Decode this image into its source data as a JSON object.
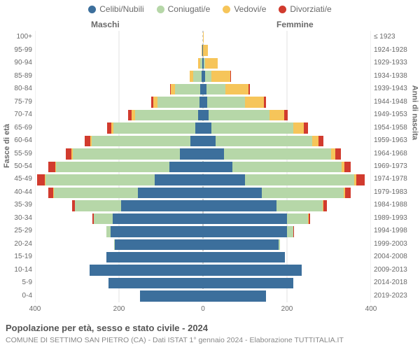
{
  "type": "population-pyramid",
  "background_color": "#ffffff",
  "grid_color": "#e0e0e0",
  "zero_line_color": "#999999",
  "label_color": "#6a6a6a",
  "legend": [
    {
      "label": "Celibi/Nubili",
      "color": "#3c6f9c"
    },
    {
      "label": "Coniugati/e",
      "color": "#b6d7a8"
    },
    {
      "label": "Vedovi/e",
      "color": "#f6c55a"
    },
    {
      "label": "Divorziati/e",
      "color": "#d13b2e"
    }
  ],
  "column_headers": {
    "male": "Maschi",
    "female": "Femmine"
  },
  "left_axis_title": "Fasce di età",
  "right_axis_title": "Anni di nascita",
  "x_axis": {
    "max": 400,
    "ticks": [
      400,
      200,
      0,
      200,
      400
    ]
  },
  "age_bands": [
    "100+",
    "95-99",
    "90-94",
    "85-89",
    "80-84",
    "75-79",
    "70-74",
    "65-69",
    "60-64",
    "55-59",
    "50-54",
    "45-49",
    "40-44",
    "35-39",
    "30-34",
    "25-29",
    "20-24",
    "15-19",
    "10-14",
    "5-9",
    "0-4"
  ],
  "birth_years": [
    "≤ 1923",
    "1924-1928",
    "1929-1933",
    "1934-1938",
    "1939-1943",
    "1944-1948",
    "1949-1953",
    "1954-1958",
    "1959-1963",
    "1964-1968",
    "1969-1973",
    "1974-1978",
    "1979-1983",
    "1984-1988",
    "1989-1993",
    "1994-1998",
    "1999-2003",
    "2004-2008",
    "2009-2013",
    "2014-2018",
    "2019-2023"
  ],
  "bands": [
    {
      "m": {
        "c": 0,
        "g": 0,
        "v": 0,
        "d": 0
      },
      "f": {
        "c": 0,
        "g": 0,
        "v": 2,
        "d": 0
      }
    },
    {
      "m": {
        "c": 1,
        "g": 0,
        "v": 2,
        "d": 0
      },
      "f": {
        "c": 0,
        "g": 0,
        "v": 12,
        "d": 0
      }
    },
    {
      "m": {
        "c": 2,
        "g": 5,
        "v": 5,
        "d": 0
      },
      "f": {
        "c": 2,
        "g": 3,
        "v": 30,
        "d": 0
      }
    },
    {
      "m": {
        "c": 4,
        "g": 20,
        "v": 8,
        "d": 0
      },
      "f": {
        "c": 5,
        "g": 15,
        "v": 45,
        "d": 2
      }
    },
    {
      "m": {
        "c": 6,
        "g": 60,
        "v": 10,
        "d": 2
      },
      "f": {
        "c": 8,
        "g": 45,
        "v": 55,
        "d": 3
      }
    },
    {
      "m": {
        "c": 8,
        "g": 100,
        "v": 10,
        "d": 5
      },
      "f": {
        "c": 10,
        "g": 90,
        "v": 45,
        "d": 5
      }
    },
    {
      "m": {
        "c": 12,
        "g": 150,
        "v": 8,
        "d": 8
      },
      "f": {
        "c": 14,
        "g": 145,
        "v": 35,
        "d": 8
      }
    },
    {
      "m": {
        "c": 18,
        "g": 195,
        "v": 5,
        "d": 10
      },
      "f": {
        "c": 20,
        "g": 195,
        "v": 25,
        "d": 10
      }
    },
    {
      "m": {
        "c": 30,
        "g": 235,
        "v": 4,
        "d": 12
      },
      "f": {
        "c": 30,
        "g": 230,
        "v": 15,
        "d": 12
      }
    },
    {
      "m": {
        "c": 55,
        "g": 255,
        "v": 3,
        "d": 14
      },
      "f": {
        "c": 50,
        "g": 255,
        "v": 10,
        "d": 14
      }
    },
    {
      "m": {
        "c": 80,
        "g": 270,
        "v": 2,
        "d": 16
      },
      "f": {
        "c": 70,
        "g": 260,
        "v": 6,
        "d": 16
      }
    },
    {
      "m": {
        "c": 115,
        "g": 260,
        "v": 2,
        "d": 18
      },
      "f": {
        "c": 100,
        "g": 260,
        "v": 5,
        "d": 20
      }
    },
    {
      "m": {
        "c": 155,
        "g": 200,
        "v": 1,
        "d": 12
      },
      "f": {
        "c": 140,
        "g": 195,
        "v": 3,
        "d": 14
      }
    },
    {
      "m": {
        "c": 195,
        "g": 110,
        "v": 0,
        "d": 6
      },
      "f": {
        "c": 175,
        "g": 110,
        "v": 2,
        "d": 8
      }
    },
    {
      "m": {
        "c": 215,
        "g": 45,
        "v": 0,
        "d": 3
      },
      "f": {
        "c": 200,
        "g": 50,
        "v": 1,
        "d": 4
      }
    },
    {
      "m": {
        "c": 220,
        "g": 10,
        "v": 0,
        "d": 0
      },
      "f": {
        "c": 200,
        "g": 15,
        "v": 0,
        "d": 2
      }
    },
    {
      "m": {
        "c": 210,
        "g": 2,
        "v": 0,
        "d": 0
      },
      "f": {
        "c": 180,
        "g": 3,
        "v": 0,
        "d": 0
      }
    },
    {
      "m": {
        "c": 230,
        "g": 0,
        "v": 0,
        "d": 0
      },
      "f": {
        "c": 195,
        "g": 0,
        "v": 0,
        "d": 0
      }
    },
    {
      "m": {
        "c": 270,
        "g": 0,
        "v": 0,
        "d": 0
      },
      "f": {
        "c": 235,
        "g": 0,
        "v": 0,
        "d": 0
      }
    },
    {
      "m": {
        "c": 225,
        "g": 0,
        "v": 0,
        "d": 0
      },
      "f": {
        "c": 215,
        "g": 0,
        "v": 0,
        "d": 0
      }
    },
    {
      "m": {
        "c": 150,
        "g": 0,
        "v": 0,
        "d": 0
      },
      "f": {
        "c": 150,
        "g": 0,
        "v": 0,
        "d": 0
      }
    }
  ],
  "footer": {
    "title": "Popolazione per età, sesso e stato civile - 2024",
    "subtitle": "COMUNE DI SETTIMO SAN PIETRO (CA) - Dati ISTAT 1° gennaio 2024 - Elaborazione TUTTITALIA.IT"
  },
  "fontsize": {
    "legend": 12,
    "axis_label": 10,
    "axis_title": 11,
    "footer_title": 13,
    "footer_sub": 10.5
  }
}
